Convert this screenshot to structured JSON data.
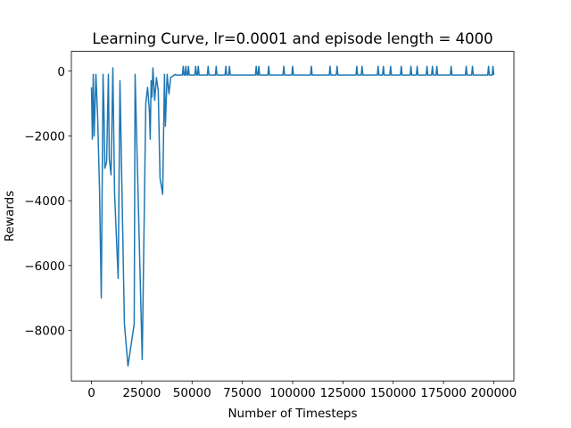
{
  "chart_data": {
    "type": "line",
    "title": "Learning Curve, lr=0.0001 and episode length = 4000",
    "xlabel": "Number of Timesteps",
    "ylabel": "Rewards",
    "color": "#1f77b4",
    "x": [
      0,
      440,
      880,
      1330,
      2210,
      3100,
      3980,
      4870,
      5750,
      6190,
      6640,
      7520,
      8400,
      8850,
      9730,
      10620,
      11500,
      13270,
      14160,
      16370,
      18140,
      21240,
      21680,
      25220,
      26990,
      27880,
      28760,
      29200,
      29650,
      30090,
      30530,
      31420,
      32300,
      33190,
      34070,
      35400,
      36280,
      36730,
      37610,
      38500,
      39380,
      41590,
      42000,
      45200,
      45600,
      46000,
      46500,
      46900,
      47300,
      47800,
      48200,
      48600,
      51400,
      51800,
      52200,
      52700,
      53100,
      53500,
      57600,
      58000,
      58400,
      61600,
      62000,
      62400,
      66400,
      66800,
      67200,
      68200,
      68600,
      69000,
      81500,
      81900,
      82300,
      82800,
      83200,
      83600,
      87700,
      88100,
      88500,
      95200,
      95600,
      96000,
      99600,
      100000,
      100400,
      108900,
      109300,
      109700,
      118200,
      118600,
      119000,
      121700,
      122100,
      122500,
      131500,
      131900,
      132300,
      134100,
      134500,
      134900,
      142100,
      142500,
      142900,
      144700,
      145100,
      145500,
      148300,
      148700,
      149100,
      153600,
      154000,
      154400,
      158400,
      158800,
      159200,
      161500,
      161900,
      162300,
      166400,
      166800,
      167200,
      169100,
      169500,
      169900,
      171300,
      171700,
      172100,
      178400,
      178800,
      179200,
      185900,
      186300,
      186700,
      189000,
      189400,
      189800,
      197000,
      197400,
      197800,
      199200,
      199600,
      200000
    ],
    "values": [
      -500,
      -2100,
      -100,
      -2000,
      -100,
      -1500,
      -3600,
      -7000,
      -100,
      -1200,
      -3000,
      -2800,
      -100,
      -2700,
      -3200,
      100,
      -3800,
      -6400,
      -300,
      -7800,
      -9100,
      -7800,
      -100,
      -8900,
      -1000,
      -500,
      -1200,
      -2100,
      -300,
      -800,
      100,
      -900,
      -200,
      -600,
      -3300,
      -3800,
      -100,
      -1700,
      -100,
      -700,
      -200,
      -100,
      -120,
      -120,
      150,
      -120,
      -120,
      150,
      -120,
      -120,
      150,
      -120,
      -120,
      150,
      -120,
      -120,
      150,
      -120,
      -120,
      150,
      -120,
      -120,
      150,
      -120,
      -120,
      150,
      -120,
      -120,
      150,
      -120,
      -120,
      150,
      -120,
      -120,
      150,
      -120,
      -120,
      150,
      -120,
      -120,
      150,
      -120,
      -120,
      150,
      -120,
      -120,
      150,
      -120,
      -120,
      150,
      -120,
      -120,
      150,
      -120,
      -120,
      150,
      -120,
      -120,
      150,
      -120,
      -120,
      150,
      -120,
      -120,
      150,
      -120,
      -120,
      150,
      -120,
      -120,
      150,
      -120,
      -120,
      150,
      -120,
      -120,
      150,
      -120,
      -120,
      150,
      -120,
      -120,
      150,
      -120,
      -120,
      150,
      -120,
      -120,
      150,
      -120,
      -120,
      150,
      -120,
      -120,
      150,
      -120,
      -120,
      150,
      -120,
      -120,
      150,
      -120
    ],
    "xlim": [
      -10000,
      210000
    ],
    "ylim": [
      -9560,
      610
    ],
    "xticks": [
      0,
      25000,
      50000,
      75000,
      100000,
      125000,
      150000,
      175000,
      200000
    ],
    "yticks": [
      {
        "value": -8000,
        "label": "−8000"
      },
      {
        "value": -6000,
        "label": "−6000"
      },
      {
        "value": -4000,
        "label": "−4000"
      },
      {
        "value": -2000,
        "label": "−2000"
      },
      0
    ]
  }
}
